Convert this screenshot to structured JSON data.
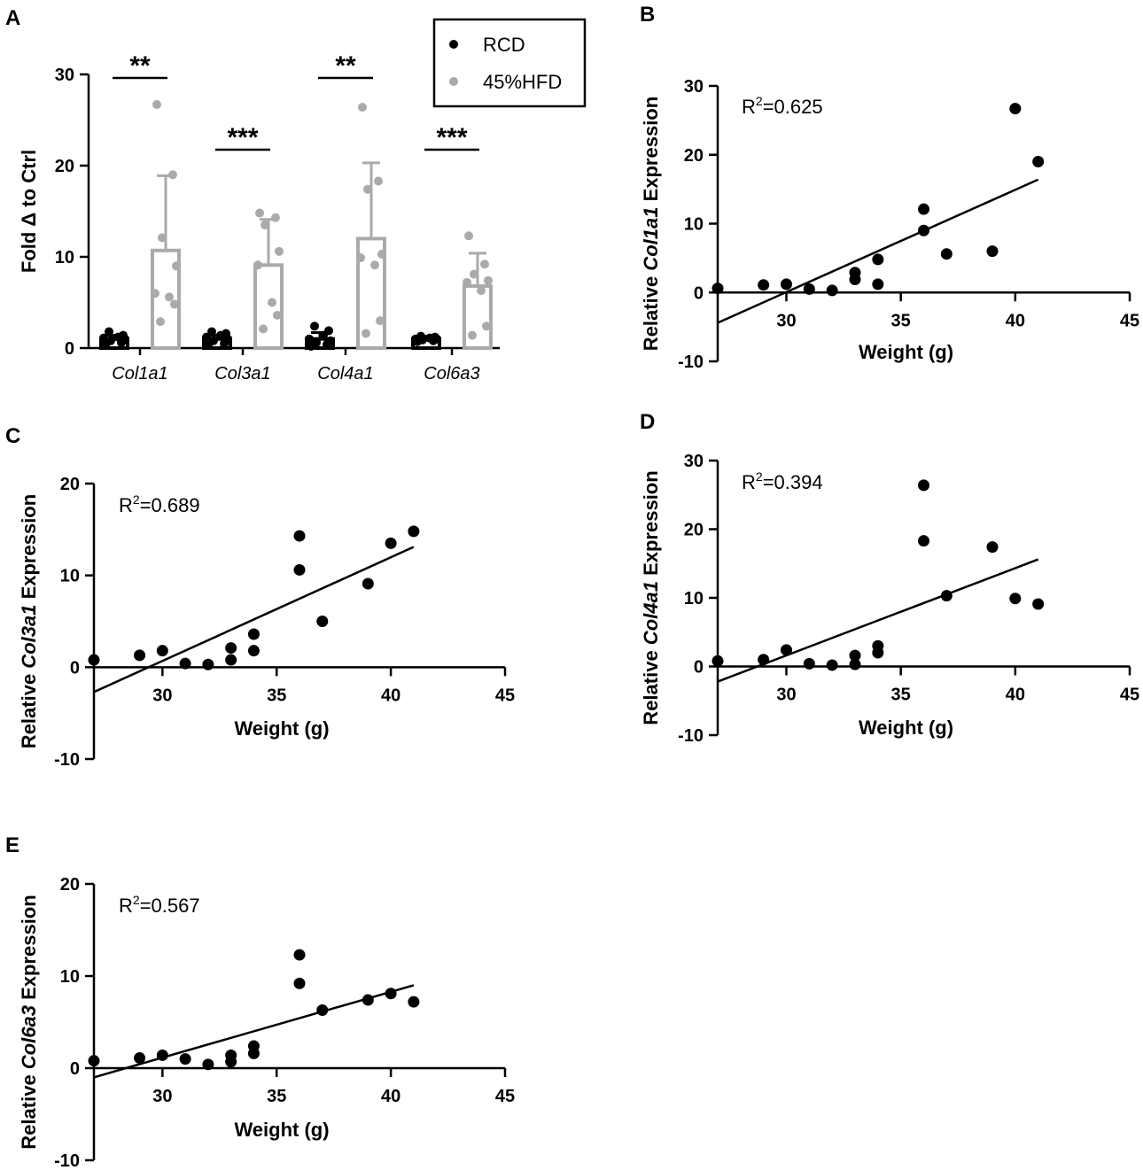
{
  "chart_data": [
    {
      "panel": "A",
      "type": "bar",
      "ylabel": "Fold Δ to Ctrl",
      "yticks": [
        "0",
        "10",
        "20",
        "30"
      ],
      "ylim": [
        0,
        30
      ],
      "categories": [
        "Col1a1",
        "Col3a1",
        "Col4a1",
        "Col6a3"
      ],
      "legend": {
        "position": "top-right",
        "entries": [
          "RCD",
          "45%HFD"
        ]
      },
      "series": [
        {
          "name": "RCD",
          "color": "#000000",
          "means": [
            1.0,
            1.0,
            1.0,
            1.0
          ],
          "sd": [
            0.4,
            0.4,
            0.7,
            0.3
          ],
          "points": [
            [
              0.3,
              0.6,
              0.8,
              1.0,
              1.1,
              1.2,
              1.4,
              1.8
            ],
            [
              0.3,
              0.5,
              0.8,
              1.0,
              1.2,
              1.4,
              1.6,
              1.8
            ],
            [
              0.2,
              0.4,
              0.6,
              0.8,
              1.0,
              1.4,
              1.9,
              2.4
            ],
            [
              0.7,
              0.8,
              0.9,
              1.0,
              1.0,
              1.1,
              1.2,
              1.3
            ]
          ]
        },
        {
          "name": "45%HFD",
          "color": "#aaaaaa",
          "means": [
            10.7,
            9.1,
            12.0,
            6.8
          ],
          "sd": [
            8.2,
            5.0,
            8.3,
            3.6
          ],
          "points": [
            [
              26.7,
              19.0,
              12.1,
              9.0,
              6.0,
              5.6,
              4.8,
              2.9
            ],
            [
              14.8,
              14.3,
              13.5,
              10.6,
              9.1,
              5.0,
              3.6,
              2.1
            ],
            [
              26.4,
              18.3,
              17.4,
              10.3,
              9.9,
              9.1,
              3.0,
              1.6
            ],
            [
              12.3,
              9.2,
              8.1,
              7.4,
              7.2,
              6.3,
              2.4,
              1.4
            ]
          ]
        }
      ],
      "significance": [
        "**",
        "***",
        "**",
        "***"
      ]
    },
    {
      "panel": "B",
      "type": "scatter",
      "ylabel_pre": "Relative ",
      "ylabel_gene": "Col1a1",
      "ylabel_post": " Expression",
      "xlabel": "Weight (g)",
      "xticks": [
        "30",
        "35",
        "40",
        "45"
      ],
      "yticks": [
        "-10",
        "0",
        "10",
        "20",
        "30"
      ],
      "xlim": [
        27,
        45
      ],
      "ylim": [
        -10,
        30
      ],
      "r2_prefix": "R",
      "r2_exp": "2",
      "r2_value": "=0.625",
      "x": [
        27,
        29,
        30,
        31,
        32,
        33,
        33,
        34,
        34,
        36,
        36,
        37,
        39,
        40,
        41
      ],
      "y": [
        0.6,
        1.1,
        1.2,
        0.5,
        0.3,
        2.9,
        1.9,
        4.8,
        1.2,
        12.1,
        9.0,
        5.6,
        6.0,
        26.7,
        19.0
      ],
      "fit": {
        "x": [
          27,
          41
        ],
        "y": [
          -4.4,
          16.4
        ]
      }
    },
    {
      "panel": "C",
      "type": "scatter",
      "ylabel_pre": "Relative ",
      "ylabel_gene": "Col3a1",
      "ylabel_post": " Expression",
      "xlabel": "Weight (g)",
      "xticks": [
        "30",
        "35",
        "40",
        "45"
      ],
      "yticks": [
        "-10",
        "0",
        "10",
        "20"
      ],
      "xlim": [
        27,
        45
      ],
      "ylim": [
        -10,
        20
      ],
      "r2_prefix": "R",
      "r2_exp": "2",
      "r2_value": "=0.689",
      "x": [
        27,
        29,
        30,
        31,
        32,
        33,
        33,
        34,
        34,
        36,
        36,
        37,
        39,
        40,
        41
      ],
      "y": [
        0.8,
        1.3,
        1.8,
        0.4,
        0.3,
        2.1,
        0.8,
        3.6,
        1.8,
        14.3,
        10.6,
        5.0,
        9.1,
        13.5,
        14.8
      ],
      "fit": {
        "x": [
          27,
          41
        ],
        "y": [
          -2.7,
          13.1
        ]
      }
    },
    {
      "panel": "D",
      "type": "scatter",
      "ylabel_pre": "Relative ",
      "ylabel_gene": "Col4a1",
      "ylabel_post": " Expression",
      "xlabel": "Weight (g)",
      "xticks": [
        "30",
        "35",
        "40",
        "45"
      ],
      "yticks": [
        "-10",
        "0",
        "10",
        "20",
        "30"
      ],
      "xlim": [
        27,
        45
      ],
      "ylim": [
        -10,
        30
      ],
      "r2_prefix": "R",
      "r2_exp": "2",
      "r2_value": "=0.394",
      "x": [
        27,
        29,
        30,
        31,
        32,
        33,
        33,
        34,
        34,
        36,
        36,
        37,
        39,
        40,
        41
      ],
      "y": [
        0.8,
        1.0,
        2.4,
        0.4,
        0.2,
        1.6,
        0.3,
        3.0,
        2.0,
        26.4,
        18.3,
        10.3,
        17.4,
        9.9,
        9.1
      ],
      "fit": {
        "x": [
          27,
          41
        ],
        "y": [
          -2.2,
          15.6
        ]
      }
    },
    {
      "panel": "E",
      "type": "scatter",
      "ylabel_pre": "Relative ",
      "ylabel_gene": "Col6a3",
      "ylabel_post": " Expression",
      "xlabel": "Weight (g)",
      "xticks": [
        "30",
        "35",
        "40",
        "45"
      ],
      "yticks": [
        "-10",
        "0",
        "10",
        "20"
      ],
      "xlim": [
        27,
        45
      ],
      "ylim": [
        -10,
        20
      ],
      "r2_prefix": "R",
      "r2_exp": "2",
      "r2_value": "=0.567",
      "x": [
        27,
        29,
        30,
        31,
        32,
        33,
        33,
        34,
        34,
        36,
        36,
        37,
        39,
        40,
        41
      ],
      "y": [
        0.8,
        1.1,
        1.4,
        1.0,
        0.4,
        1.4,
        0.7,
        2.4,
        1.6,
        12.3,
        9.2,
        6.3,
        7.4,
        8.1,
        7.2
      ],
      "fit": {
        "x": [
          27,
          41
        ],
        "y": [
          -1.0,
          9.0
        ]
      }
    }
  ]
}
